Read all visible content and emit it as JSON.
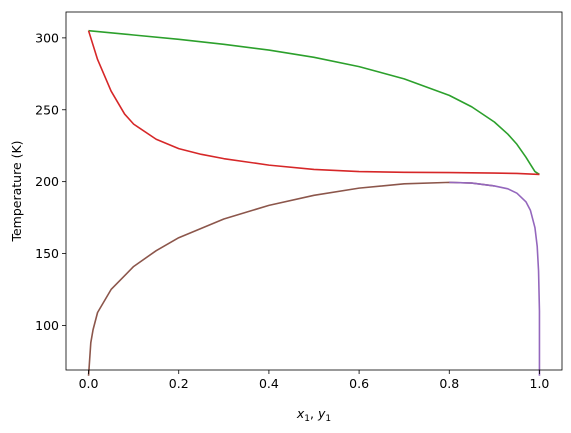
{
  "chart_data": {
    "type": "line",
    "title": "",
    "xlabel_base": "x",
    "xlabel_sub1": "1",
    "xlabel_sep": ", ",
    "xlabel_base2": "y",
    "xlabel_sub2": "1",
    "ylabel": "Temperature (K)",
    "xlim": [
      -0.05,
      1.05
    ],
    "ylim": [
      69,
      318
    ],
    "xticks": [
      0.0,
      0.2,
      0.4,
      0.6,
      0.8,
      1.0
    ],
    "xtick_labels": [
      "0.0",
      "0.2",
      "0.4",
      "0.6",
      "0.8",
      "1.0"
    ],
    "yticks": [
      100,
      150,
      200,
      250,
      300
    ],
    "ytick_labels": [
      "100",
      "150",
      "200",
      "250",
      "300"
    ],
    "grid": false,
    "series": [
      {
        "color": "#2ca02c",
        "x": [
          0.0,
          0.1,
          0.2,
          0.3,
          0.4,
          0.5,
          0.6,
          0.7,
          0.8,
          0.85,
          0.9,
          0.93,
          0.95,
          0.97,
          0.98,
          0.99,
          1.0
        ],
        "y": [
          305,
          302,
          299,
          295.5,
          291.5,
          286.5,
          280,
          271.5,
          260,
          252,
          241.5,
          233,
          226,
          217,
          212,
          207,
          205
        ]
      },
      {
        "color": "#d62728",
        "x": [
          0.0,
          0.02,
          0.05,
          0.08,
          0.1,
          0.15,
          0.2,
          0.25,
          0.3,
          0.4,
          0.5,
          0.6,
          0.7,
          0.8,
          0.9,
          0.95,
          1.0
        ],
        "y": [
          305,
          285,
          263,
          247,
          240,
          229.5,
          223,
          219,
          216,
          211.5,
          208.5,
          207,
          206.5,
          206.3,
          206,
          205.7,
          205
        ]
      },
      {
        "color": "#8c564b",
        "x": [
          0.0,
          0.005,
          0.01,
          0.02,
          0.05,
          0.1,
          0.15,
          0.2,
          0.3,
          0.4,
          0.5,
          0.6,
          0.7,
          0.8,
          0.85,
          0.9
        ],
        "y": [
          65,
          88,
          97,
          109,
          125,
          141,
          152,
          161,
          174,
          183.5,
          190.5,
          195.5,
          198.5,
          199.5,
          199,
          197
        ]
      },
      {
        "color": "#9467bd",
        "x": [
          0.8,
          0.85,
          0.9,
          0.93,
          0.95,
          0.97,
          0.98,
          0.99,
          0.995,
          0.998,
          1.0,
          1.0
        ],
        "y": [
          199.5,
          199,
          197,
          195,
          192,
          186,
          180,
          168,
          155,
          138,
          110,
          65
        ]
      }
    ]
  }
}
